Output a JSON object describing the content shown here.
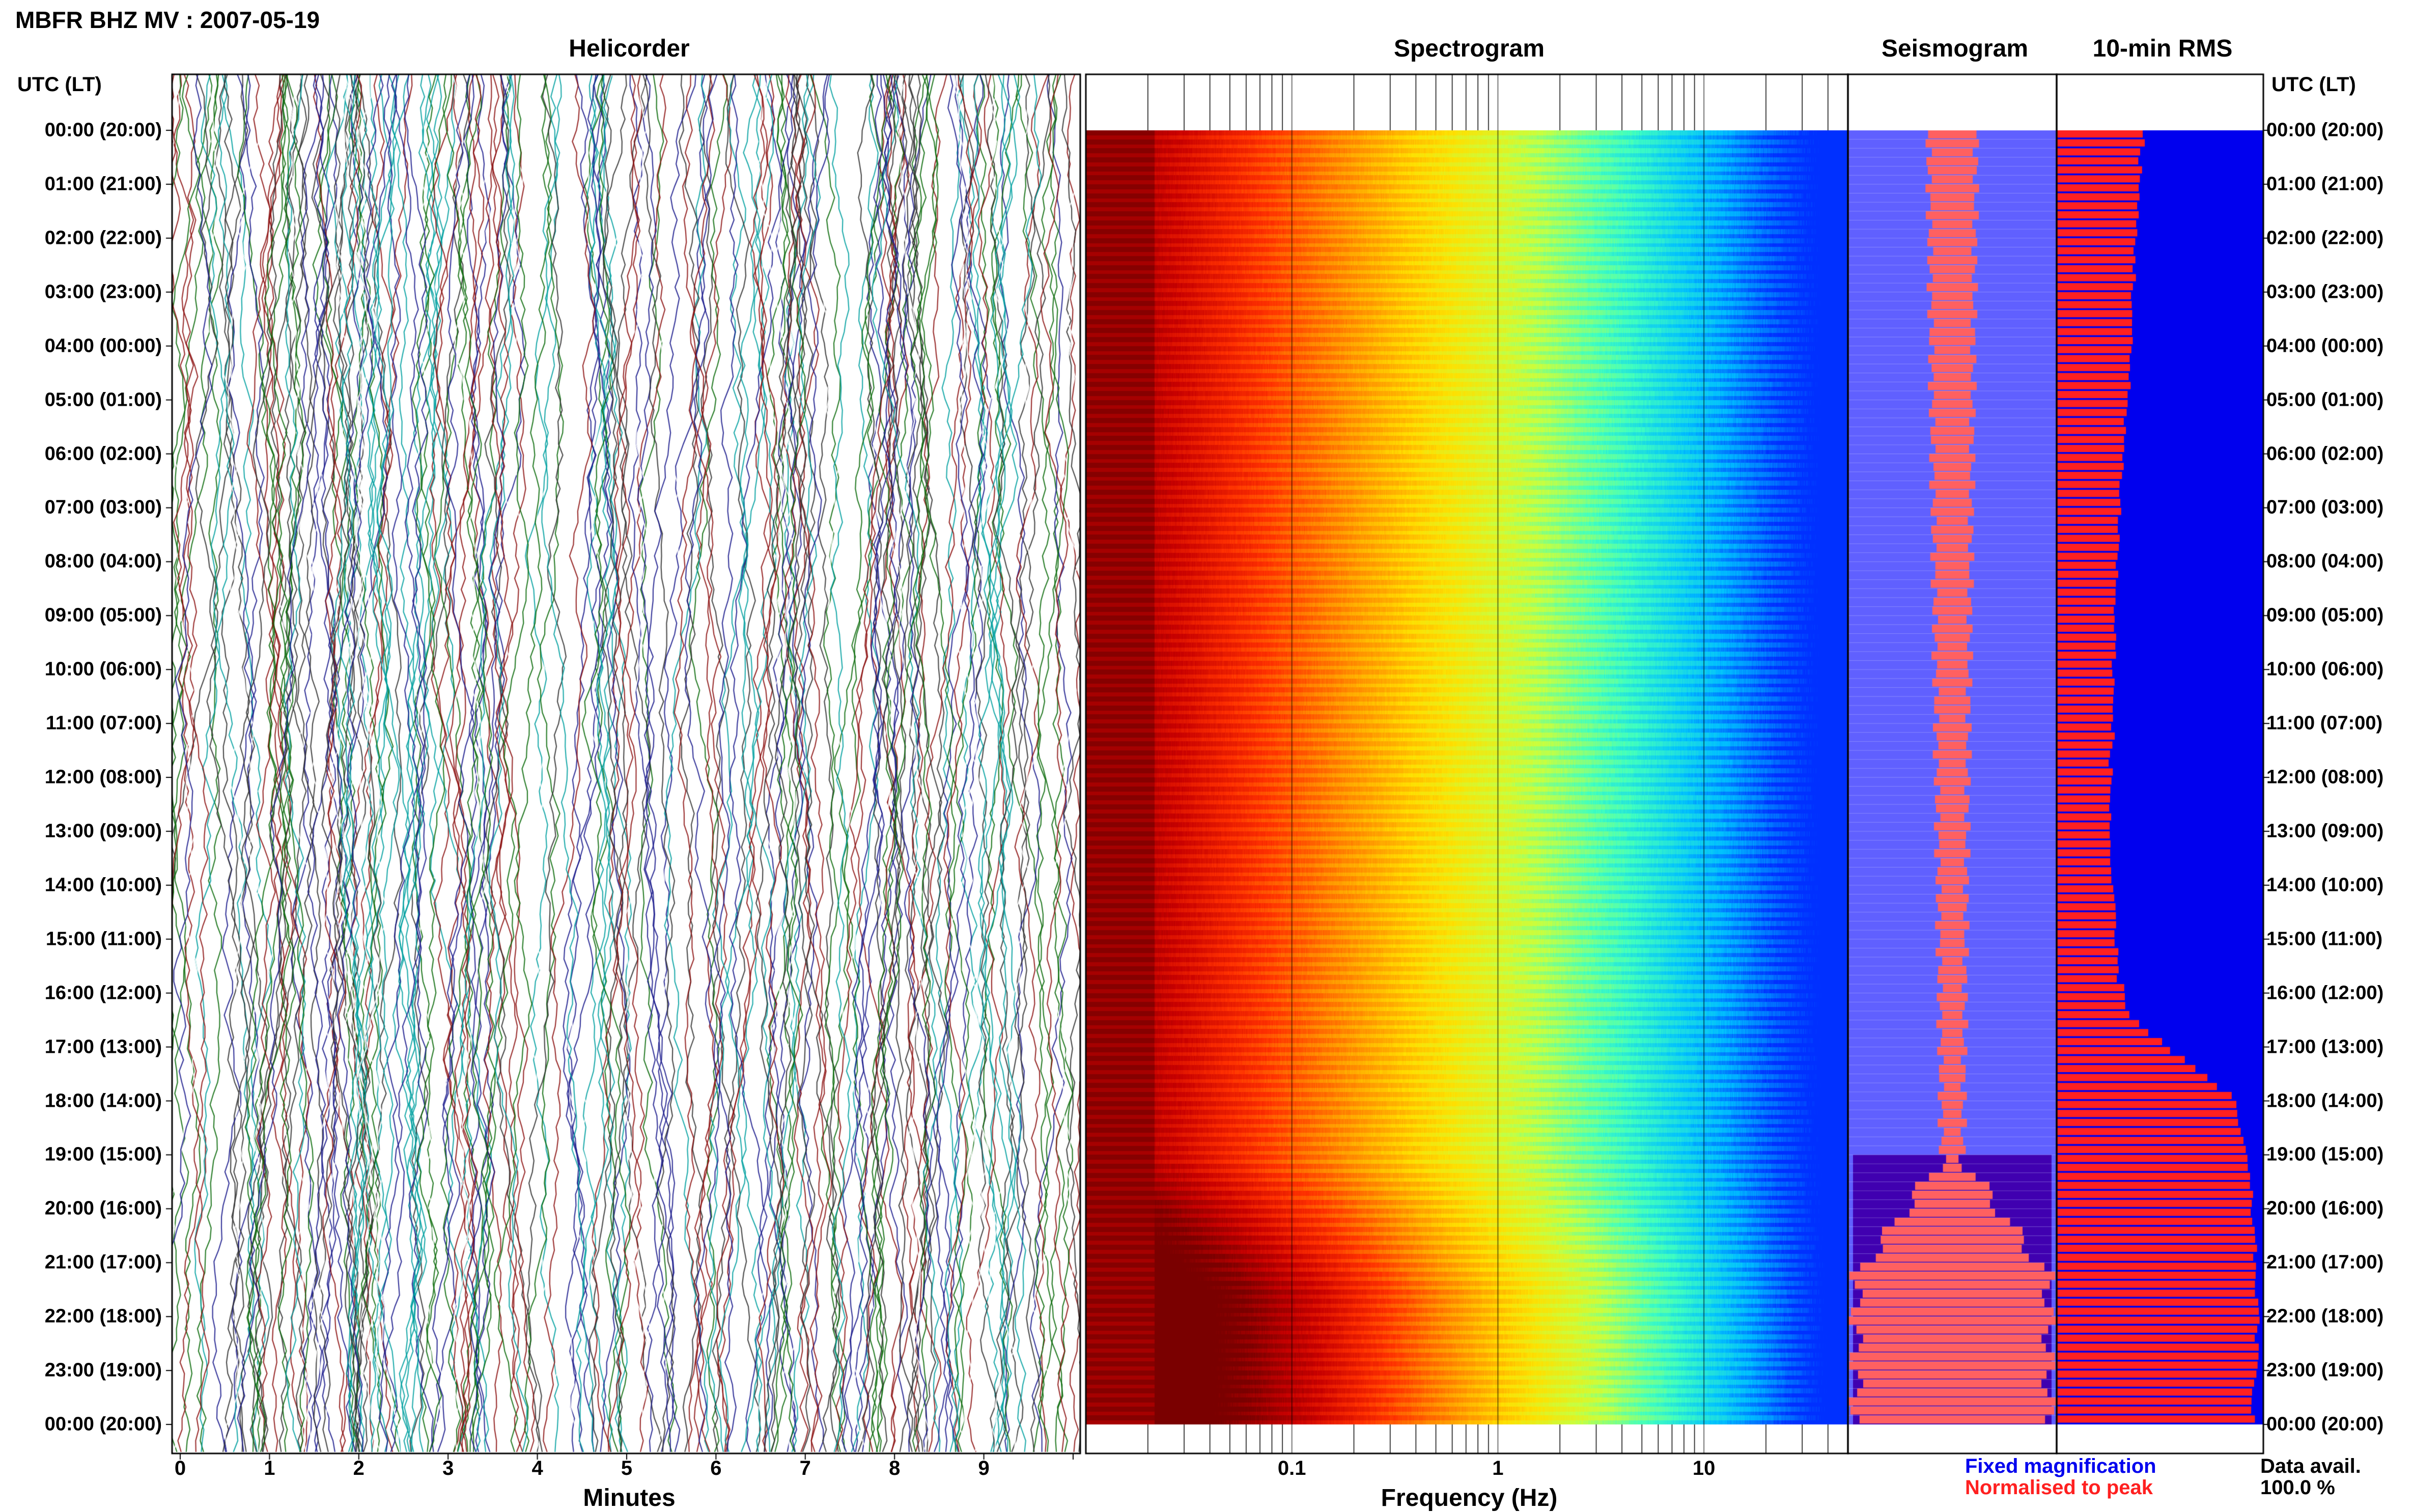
{
  "header": {
    "title": "MBFR BHZ MV : 2007-05-19"
  },
  "panels": {
    "helicorder": "Helicorder",
    "spectrogram": "Spectrogram",
    "seismogram": "Seismogram",
    "rms": "10-min RMS"
  },
  "axis": {
    "time_label_left": "UTC (LT)",
    "time_label_right": "UTC (LT)",
    "minutes_label": "Minutes",
    "frequency_label": "Frequency (Hz)"
  },
  "legend": {
    "fixed": "Fixed magnification",
    "normalised": "Normalised to peak",
    "fixed_color": "#0000ee",
    "normalised_color": "#ff2020"
  },
  "availability": {
    "label": "Data avail.",
    "value": "100.0 %"
  },
  "chart_data": {
    "type": "heatmap",
    "title": "MBFR BHZ MV : 2007-05-19",
    "time_ticks": [
      "00:00 (20:00)",
      "01:00 (21:00)",
      "02:00 (22:00)",
      "03:00 (23:00)",
      "04:00 (00:00)",
      "05:00 (01:00)",
      "06:00 (02:00)",
      "07:00 (03:00)",
      "08:00 (04:00)",
      "09:00 (05:00)",
      "10:00 (06:00)",
      "11:00 (07:00)",
      "12:00 (08:00)",
      "13:00 (09:00)",
      "14:00 (10:00)",
      "15:00 (11:00)",
      "16:00 (12:00)",
      "17:00 (13:00)",
      "18:00 (14:00)",
      "19:00 (15:00)",
      "20:00 (16:00)",
      "21:00 (17:00)",
      "22:00 (18:00)",
      "23:00 (19:00)",
      "00:00 (20:00)"
    ],
    "helicorder": {
      "xlabel": "Minutes",
      "xlim": [
        0,
        10
      ],
      "xticks": [
        "0",
        "1",
        "2",
        "3",
        "4",
        "5",
        "6",
        "7",
        "8",
        "9"
      ],
      "trace_colors": [
        "#1a1a8c",
        "#0b6b0b",
        "#8c1010",
        "#00a0a0",
        "#303030",
        "#ffffff"
      ]
    },
    "spectrogram": {
      "xlabel": "Frequency (Hz)",
      "xscale": "log",
      "xlim": [
        0.01,
        50
      ],
      "xticks": [
        "0.1",
        "1",
        "10"
      ],
      "colormap": [
        "#7a0000",
        "#c80000",
        "#ff3000",
        "#ff9000",
        "#ffe000",
        "#c8ff40",
        "#40ffc0",
        "#00c0ff",
        "#0030ff"
      ],
      "dominant_band_hz": [
        0.01,
        0.05
      ]
    },
    "seismogram": {
      "fixed_magnification_color": "#6060ff",
      "normalised_color": "#ff6060"
    },
    "rms_10min": {
      "bar_color": "#ff2020",
      "background_color": "#0000ee",
      "relative_rms": [
        0.42,
        0.4,
        0.39,
        0.38,
        0.37,
        0.36,
        0.35,
        0.34,
        0.32,
        0.31,
        0.3,
        0.29,
        0.28,
        0.28,
        0.27,
        0.27,
        0.26,
        0.26,
        0.26,
        0.27,
        0.28,
        0.3,
        0.36,
        0.6,
        0.85,
        0.9,
        0.93,
        0.95,
        0.96,
        0.97,
        0.97,
        0.96,
        0.95
      ]
    }
  }
}
